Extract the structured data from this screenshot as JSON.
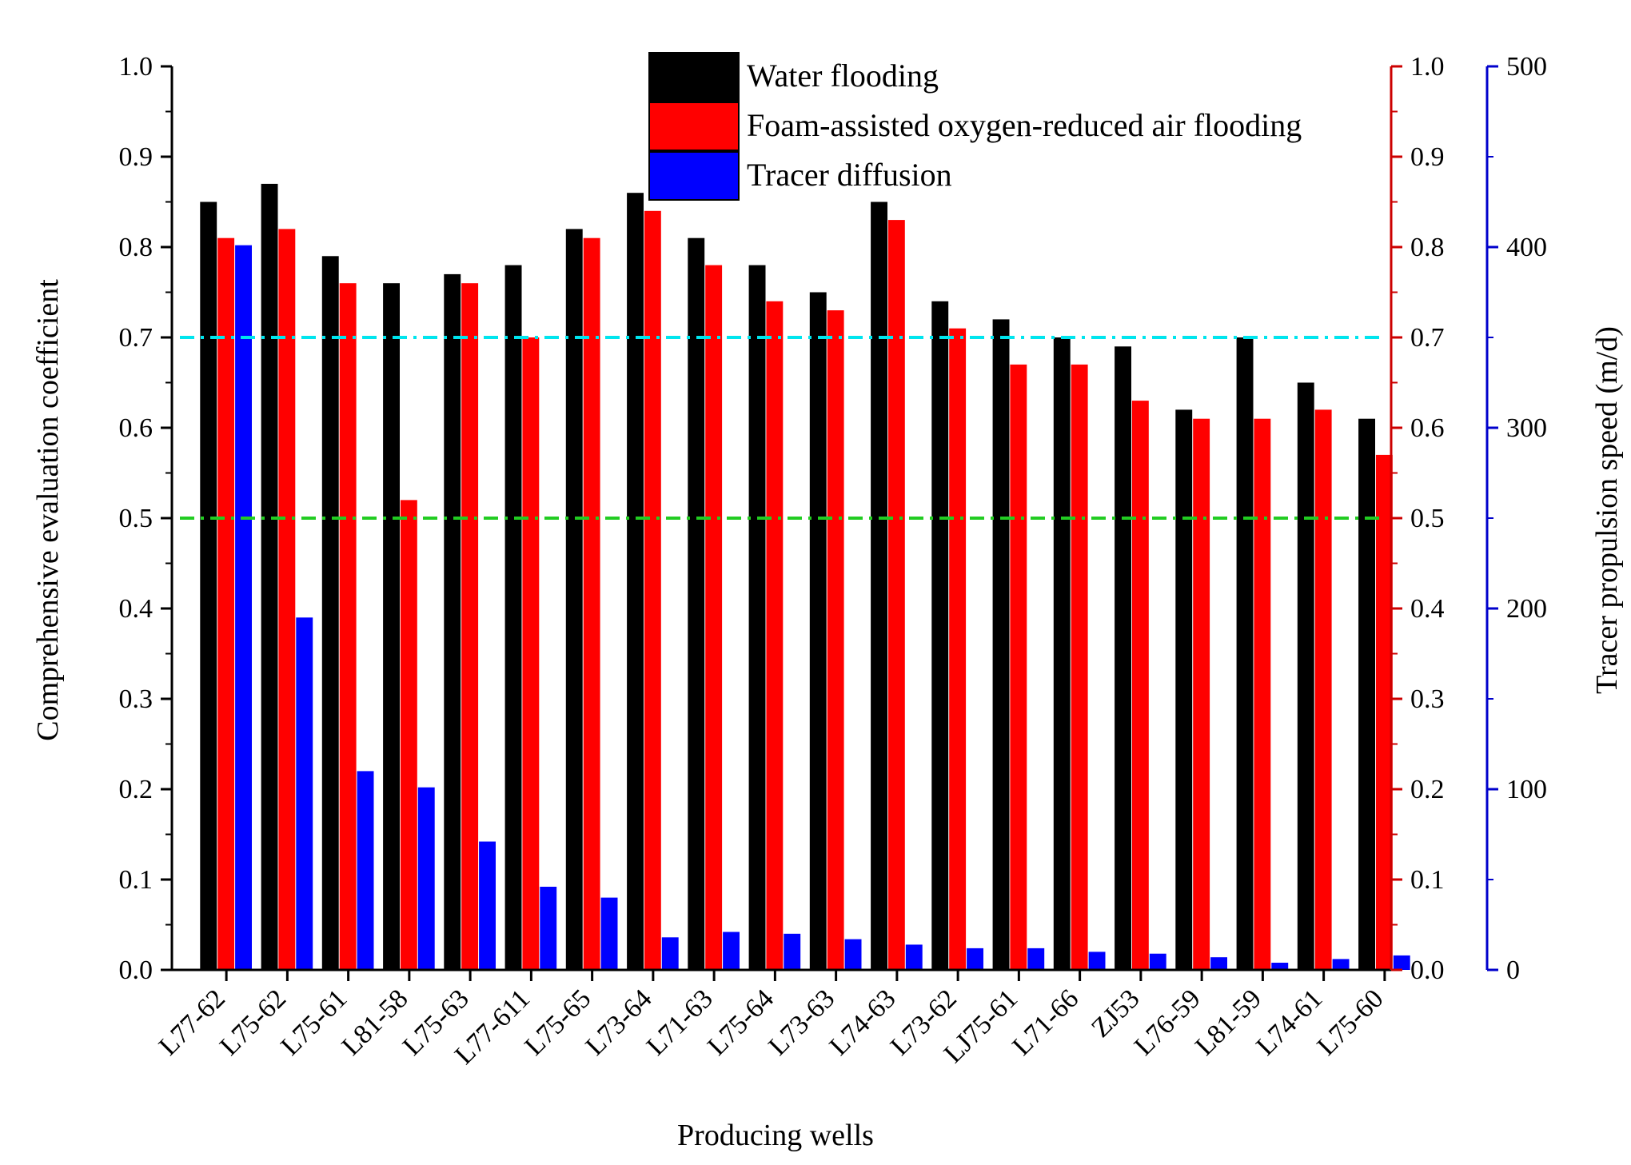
{
  "chart_data": {
    "type": "bar",
    "categories": [
      "L77-62",
      "L75-62",
      "L75-61",
      "L81-58",
      "L75-63",
      "L77-611",
      "L75-65",
      "L73-64",
      "L71-63",
      "L75-64",
      "L73-63",
      "L74-63",
      "L73-62",
      "LJ75-61",
      "L71-66",
      "ZJ53",
      "L76-59",
      "L81-59",
      "L74-61",
      "L75-60"
    ],
    "series": [
      {
        "name": "Water flooding",
        "axis": "left",
        "color": "#000000",
        "values": [
          0.85,
          0.87,
          0.79,
          0.76,
          0.77,
          0.78,
          0.82,
          0.86,
          0.81,
          0.78,
          0.75,
          0.85,
          0.74,
          0.72,
          0.7,
          0.69,
          0.62,
          0.7,
          0.65,
          0.61
        ]
      },
      {
        "name": "Foam-assisted oxygen-reduced air flooding",
        "axis": "right",
        "color": "#ff0000",
        "values": [
          0.81,
          0.82,
          0.76,
          0.52,
          0.76,
          0.7,
          0.81,
          0.84,
          0.78,
          0.74,
          0.73,
          0.83,
          0.71,
          0.67,
          0.67,
          0.63,
          0.61,
          0.61,
          0.62,
          0.57
        ]
      },
      {
        "name": "Tracer diffusion",
        "axis": "right2",
        "color": "#0000ff",
        "values": [
          401,
          195,
          110,
          101,
          71,
          46,
          40,
          18,
          21,
          20,
          17,
          14,
          12,
          12,
          10,
          9,
          7,
          4,
          6,
          8
        ]
      }
    ],
    "reference_lines": [
      {
        "value": 0.7,
        "color": "#00e5ee",
        "style": "dash-dot"
      },
      {
        "value": 0.5,
        "color": "#22cc22",
        "style": "dash-dot"
      }
    ],
    "xlabel": "Producing wells",
    "ylabel": "Comprehensive evaluation coefficient",
    "y2label": "",
    "y3label": "Tracer propulsion speed (m/d)",
    "ylim": [
      0,
      1.0
    ],
    "y2lim": [
      0,
      1.0
    ],
    "y3lim": [
      0,
      500
    ],
    "yticks": [
      "0.0",
      "0.1",
      "0.2",
      "0.3",
      "0.4",
      "0.5",
      "0.6",
      "0.7",
      "0.8",
      "0.9",
      "1.0"
    ],
    "y2ticks": [
      "0.0",
      "0.1",
      "0.2",
      "0.3",
      "0.4",
      "0.5",
      "0.6",
      "0.7",
      "0.8",
      "0.9",
      "1.0"
    ],
    "y3ticks": [
      "0",
      "100",
      "200",
      "300",
      "400",
      "500"
    ],
    "axis_colors": {
      "left": "#000000",
      "right": "#cc0000",
      "right2": "#0000cc"
    },
    "legend_position": "top-center"
  }
}
